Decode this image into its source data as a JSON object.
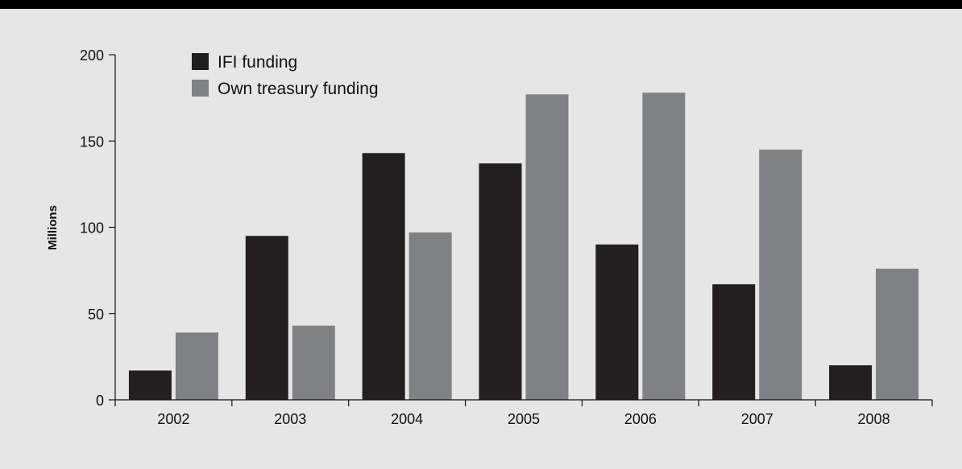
{
  "chart_data": {
    "type": "bar",
    "title": "",
    "xlabel": "",
    "ylabel": "Millions",
    "ylim": [
      0,
      200
    ],
    "yticks": [
      0,
      50,
      100,
      150,
      200
    ],
    "categories": [
      "2002",
      "2003",
      "2004",
      "2005",
      "2006",
      "2007",
      "2008"
    ],
    "series": [
      {
        "name": "IFI funding",
        "color": "#231f20",
        "values": [
          17,
          95,
          143,
          137,
          90,
          67,
          20
        ]
      },
      {
        "name": "Own treasury funding",
        "color": "#808184",
        "values": [
          39,
          43,
          97,
          177,
          178,
          145,
          76
        ]
      }
    ],
    "legend_position": "top-left",
    "grid": false
  }
}
